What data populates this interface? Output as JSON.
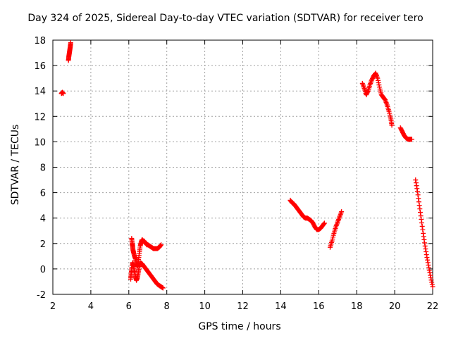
{
  "chart_data": {
    "type": "scatter",
    "title": "Day 324 of 2025, Sidereal Day-to-day VTEC variation (SDTVAR) for receiver tero",
    "xlabel": "GPS time / hours",
    "ylabel": "SDTVAR / TECUs",
    "xlim": [
      2,
      22
    ],
    "ylim": [
      -2,
      18
    ],
    "xticks": [
      2,
      4,
      6,
      8,
      10,
      12,
      14,
      16,
      18,
      20,
      22
    ],
    "yticks": [
      -2,
      0,
      2,
      4,
      6,
      8,
      10,
      12,
      14,
      16,
      18
    ],
    "grid": true,
    "marker": "+",
    "color": "#ff0000",
    "series": [
      {
        "name": "seg1",
        "x": [
          2.45,
          2.5,
          2.55
        ],
        "y": [
          13.8,
          13.9,
          13.8
        ]
      },
      {
        "name": "seg2",
        "x": [
          2.82,
          2.84,
          2.86,
          2.88,
          2.9,
          2.92,
          2.94
        ],
        "y": [
          16.4,
          16.7,
          16.9,
          17.1,
          17.3,
          17.5,
          17.8
        ]
      },
      {
        "name": "seg3",
        "x": [
          6.15,
          6.18,
          6.2,
          6.22,
          6.25,
          6.3,
          6.35,
          6.4,
          6.45,
          6.5,
          6.55,
          6.6,
          6.65,
          6.7,
          6.75,
          6.8,
          6.85,
          6.9,
          6.95,
          7.0,
          7.1,
          7.2,
          7.3,
          7.4,
          7.5,
          7.6,
          7.7
        ],
        "y": [
          2.4,
          2.0,
          1.8,
          1.5,
          1.3,
          1.0,
          0.8,
          0.4,
          0.2,
          0.6,
          1.2,
          1.8,
          2.1,
          2.3,
          2.2,
          2.2,
          2.1,
          2.0,
          1.9,
          1.9,
          1.8,
          1.7,
          1.6,
          1.6,
          1.6,
          1.7,
          1.9
        ]
      },
      {
        "name": "seg4",
        "x": [
          6.1,
          6.12,
          6.15,
          6.2,
          6.25,
          6.3,
          6.35,
          6.4,
          6.45,
          6.5,
          6.55,
          6.6,
          6.7,
          6.8,
          6.9,
          7.0,
          7.1,
          7.2,
          7.3,
          7.4,
          7.5,
          7.6,
          7.7,
          7.8
        ],
        "y": [
          -0.8,
          -0.4,
          0.0,
          0.5,
          0.2,
          -0.2,
          -0.6,
          -0.9,
          -0.7,
          -0.3,
          0.2,
          0.5,
          0.4,
          0.2,
          0.0,
          -0.2,
          -0.4,
          -0.6,
          -0.8,
          -1.0,
          -1.2,
          -1.3,
          -1.4,
          -1.5
        ]
      },
      {
        "name": "seg5",
        "x": [
          14.5,
          14.6,
          14.7,
          14.8,
          14.9,
          15.0,
          15.1,
          15.2,
          15.3,
          15.4,
          15.5,
          15.6,
          15.7,
          15.8,
          15.9,
          16.0,
          16.1,
          16.2,
          16.3
        ],
        "y": [
          5.4,
          5.2,
          5.1,
          4.9,
          4.7,
          4.5,
          4.3,
          4.1,
          4.0,
          4.0,
          3.9,
          3.8,
          3.6,
          3.3,
          3.1,
          3.1,
          3.2,
          3.4,
          3.6
        ]
      },
      {
        "name": "seg6",
        "x": [
          16.6,
          16.7,
          16.8,
          16.9,
          17.0,
          17.1,
          17.2
        ],
        "y": [
          1.7,
          2.2,
          2.8,
          3.3,
          3.7,
          4.1,
          4.5
        ]
      },
      {
        "name": "seg7",
        "x": [
          18.3,
          18.4,
          18.5,
          18.6,
          18.7,
          18.8,
          18.9,
          19.0,
          19.1,
          19.2,
          19.3,
          19.4,
          19.5,
          19.6,
          19.7,
          19.8,
          19.85
        ],
        "y": [
          14.6,
          14.2,
          13.7,
          14.0,
          14.5,
          14.9,
          15.2,
          15.4,
          15.0,
          14.3,
          13.7,
          13.5,
          13.3,
          12.9,
          12.4,
          11.8,
          11.3
        ]
      },
      {
        "name": "seg8",
        "x": [
          20.3,
          20.4,
          20.5,
          20.6,
          20.7,
          20.8,
          20.9
        ],
        "y": [
          11.1,
          10.8,
          10.5,
          10.3,
          10.2,
          10.2,
          10.2
        ]
      },
      {
        "name": "seg9",
        "x": [
          21.1,
          21.2,
          21.3,
          21.4,
          21.5,
          21.6,
          21.7,
          21.8,
          21.9,
          22.0
        ],
        "y": [
          7.0,
          6.1,
          5.0,
          3.9,
          2.8,
          1.8,
          0.9,
          0.1,
          -0.7,
          -1.4
        ]
      }
    ]
  }
}
